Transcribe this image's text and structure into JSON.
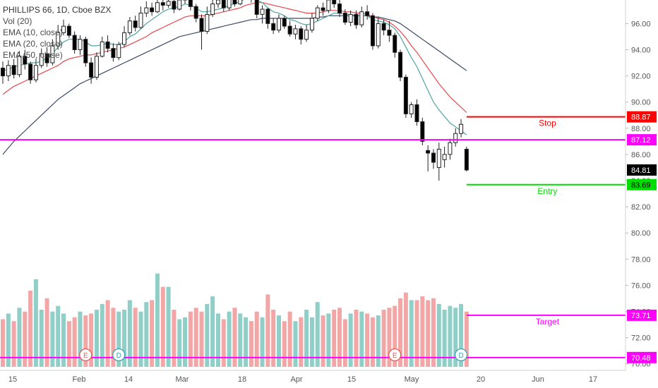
{
  "chart_data": {
    "type": "candlestick",
    "legend": {
      "title": "PHILLIPS 66, 1D, Cboe BZX",
      "lines": [
        "Vol (20)",
        "EMA (10, close)",
        "EMA (20, close)",
        "EMA (50, close)"
      ]
    },
    "y_axis": {
      "ticks": [
        "96.00",
        "94.00",
        "92.00",
        "90.00",
        "88.00",
        "86.00",
        "84.00",
        "82.00",
        "80.00",
        "78.00",
        "76.00",
        "74.00",
        "72.00",
        "70.00"
      ],
      "range": [
        69.5,
        97.8
      ]
    },
    "x_axis": {
      "ticks": [
        "15",
        "Feb",
        "14",
        "Mar",
        "18",
        "Apr",
        "15",
        "May",
        "20",
        "Jun",
        "17"
      ]
    },
    "levels": [
      {
        "name": "Stop",
        "value": 88.87,
        "label": "88.87",
        "color": "#ff0000",
        "text": "Stop"
      },
      {
        "name": "Line",
        "value": 87.12,
        "label": "87.12",
        "color": "#ff00ff",
        "text": ""
      },
      {
        "name": "Last",
        "value": 84.81,
        "label": "84.81",
        "color": "#000000",
        "text": ""
      },
      {
        "name": "Entry",
        "value": 83.69,
        "label": "83.69",
        "color": "#00dd00",
        "text": "Entry"
      },
      {
        "name": "Target",
        "value": 73.71,
        "label": "73.71",
        "color": "#ff00ff",
        "text": "Target"
      },
      {
        "name": "Low",
        "value": 70.48,
        "label": "70.48",
        "color": "#ff00ff",
        "text": ""
      }
    ],
    "events": [
      {
        "letter": "E",
        "date_index": 15
      },
      {
        "letter": "D",
        "date_index": 21
      },
      {
        "letter": "E",
        "date_index": 71
      },
      {
        "letter": "D",
        "date_index": 83
      }
    ],
    "candles": [
      [
        92.6,
        92.0,
        93.1,
        91.4
      ],
      [
        92.0,
        92.8,
        93.2,
        91.6
      ],
      [
        92.8,
        92.1,
        93.3,
        91.8
      ],
      [
        92.1,
        93.5,
        93.9,
        91.9
      ],
      [
        93.5,
        92.9,
        94.0,
        92.5
      ],
      [
        92.9,
        91.7,
        93.1,
        91.4
      ],
      [
        91.7,
        92.8,
        93.3,
        91.5
      ],
      [
        92.8,
        93.7,
        94.1,
        92.6
      ],
      [
        93.7,
        93.0,
        94.2,
        92.7
      ],
      [
        93.0,
        94.3,
        94.8,
        92.8
      ],
      [
        94.3,
        95.3,
        95.9,
        94.0
      ],
      [
        95.3,
        95.8,
        96.3,
        95.1
      ],
      [
        95.8,
        95.1,
        96.0,
        94.9
      ],
      [
        95.1,
        94.0,
        95.4,
        93.7
      ],
      [
        94.0,
        94.8,
        95.1,
        93.6
      ],
      [
        94.8,
        93.0,
        95.0,
        92.7
      ],
      [
        93.0,
        91.9,
        93.4,
        91.4
      ],
      [
        91.9,
        93.5,
        93.8,
        91.7
      ],
      [
        93.5,
        94.6,
        95.0,
        93.4
      ],
      [
        94.6,
        94.1,
        95.1,
        93.8
      ],
      [
        94.1,
        93.4,
        94.5,
        93.1
      ],
      [
        93.4,
        94.4,
        94.6,
        93.2
      ],
      [
        94.4,
        95.3,
        95.8,
        94.2
      ],
      [
        95.3,
        96.2,
        96.5,
        95.1
      ],
      [
        96.2,
        95.7,
        96.6,
        95.4
      ],
      [
        95.7,
        96.8,
        97.3,
        95.6
      ],
      [
        96.8,
        97.2,
        97.7,
        96.5
      ],
      [
        97.2,
        96.9,
        97.6,
        96.6
      ],
      [
        96.9,
        97.6,
        98.0,
        96.8
      ],
      [
        97.6,
        97.4,
        97.9,
        97.0
      ],
      [
        97.4,
        97.7,
        98.1,
        97.2
      ],
      [
        97.7,
        97.1,
        97.9,
        96.8
      ],
      [
        97.1,
        97.8,
        98.2,
        97.0
      ],
      [
        97.8,
        97.9,
        98.3,
        97.5
      ],
      [
        97.9,
        97.3,
        98.0,
        97.0
      ],
      [
        97.3,
        96.4,
        97.5,
        96.1
      ],
      [
        96.4,
        95.4,
        96.7,
        94.0
      ],
      [
        95.4,
        96.7,
        97.3,
        95.2
      ],
      [
        96.7,
        97.5,
        97.9,
        96.5
      ],
      [
        97.5,
        97.8,
        98.2,
        97.2
      ],
      [
        97.8,
        97.2,
        97.9,
        96.9
      ],
      [
        97.2,
        98.1,
        98.4,
        97.0
      ],
      [
        98.1,
        97.5,
        98.4,
        97.3
      ],
      [
        97.5,
        98.2,
        98.5,
        97.4
      ],
      [
        98.2,
        98.5,
        98.8,
        98.0
      ],
      [
        98.5,
        97.9,
        98.8,
        97.6
      ],
      [
        97.9,
        96.7,
        98.1,
        96.4
      ],
      [
        96.7,
        97.1,
        97.4,
        96.0
      ],
      [
        97.1,
        96.0,
        97.2,
        95.6
      ],
      [
        96.0,
        95.5,
        96.4,
        95.2
      ],
      [
        95.5,
        96.4,
        96.7,
        95.3
      ],
      [
        96.4,
        95.8,
        96.6,
        95.6
      ],
      [
        95.8,
        95.2,
        96.2,
        95.0
      ],
      [
        95.2,
        95.6,
        95.9,
        94.8
      ],
      [
        95.6,
        94.8,
        95.8,
        94.4
      ],
      [
        94.8,
        95.5,
        95.9,
        94.6
      ],
      [
        95.5,
        96.4,
        96.8,
        95.3
      ],
      [
        96.4,
        97.2,
        97.4,
        96.2
      ],
      [
        97.2,
        97.0,
        97.6,
        96.6
      ],
      [
        97.0,
        97.8,
        98.0,
        96.8
      ],
      [
        97.8,
        97.5,
        98.3,
        97.2
      ],
      [
        97.5,
        96.8,
        97.8,
        96.5
      ],
      [
        96.8,
        96.1,
        97.1,
        95.9
      ],
      [
        96.1,
        96.7,
        97.0,
        95.8
      ],
      [
        96.7,
        95.9,
        97.0,
        95.6
      ],
      [
        95.9,
        96.9,
        97.3,
        95.7
      ],
      [
        96.9,
        96.6,
        97.4,
        96.3
      ],
      [
        96.6,
        94.3,
        96.8,
        94.0
      ],
      [
        94.3,
        96.0,
        96.5,
        94.1
      ],
      [
        96.0,
        95.5,
        96.3,
        95.1
      ],
      [
        95.5,
        95.1,
        96.2,
        94.6
      ],
      [
        95.1,
        93.8,
        95.3,
        93.4
      ],
      [
        93.8,
        91.9,
        94.0,
        91.6
      ],
      [
        91.9,
        89.1,
        92.1,
        88.8
      ],
      [
        89.1,
        89.8,
        90.0,
        88.8
      ],
      [
        89.8,
        88.5,
        90.2,
        88.2
      ],
      [
        88.5,
        87.0,
        88.8,
        86.7
      ],
      [
        86.3,
        86.1,
        86.7,
        84.7
      ],
      [
        86.1,
        85.4,
        86.4,
        84.9
      ],
      [
        85.0,
        86.4,
        86.9,
        84.0
      ],
      [
        85.6,
        86.0,
        86.6,
        85.0
      ],
      [
        86.0,
        86.9,
        87.2,
        85.6
      ],
      [
        86.9,
        87.6,
        88.0,
        86.6
      ],
      [
        87.6,
        88.3,
        88.7,
        87.3
      ],
      [
        86.4,
        84.81,
        86.6,
        84.7
      ]
    ],
    "volume_up": [
      0,
      1,
      0,
      1,
      0,
      0,
      1,
      1,
      0,
      1,
      1,
      1,
      0,
      0,
      1,
      0,
      0,
      1,
      1,
      0,
      0,
      1,
      1,
      1,
      0,
      1,
      1,
      0,
      1,
      0,
      1,
      0,
      1,
      1,
      0,
      0,
      0,
      1,
      1,
      1,
      0,
      1,
      0,
      1,
      1,
      0,
      0,
      1,
      0,
      0,
      1,
      0,
      0,
      1,
      0,
      1,
      1,
      1,
      0,
      1,
      0,
      0,
      0,
      1,
      0,
      1,
      0,
      0,
      1,
      0,
      0,
      0,
      0,
      0,
      1,
      0,
      0,
      0,
      0,
      1,
      1,
      1,
      1,
      1,
      0
    ],
    "volume": [
      50,
      56,
      48,
      62,
      58,
      80,
      92,
      60,
      72,
      58,
      64,
      56,
      48,
      52,
      58,
      54,
      56,
      60,
      66,
      70,
      62,
      58,
      60,
      70,
      62,
      58,
      68,
      70,
      98,
      84,
      84,
      60,
      50,
      52,
      58,
      62,
      58,
      66,
      74,
      56,
      50,
      58,
      62,
      56,
      52,
      48,
      58,
      52,
      76,
      60,
      54,
      48,
      58,
      48,
      52,
      60,
      52,
      68,
      54,
      56,
      60,
      62,
      50,
      56,
      60,
      58,
      56,
      52,
      54,
      60,
      62,
      64,
      72,
      78,
      70,
      70,
      74,
      70,
      72,
      66,
      60,
      64,
      62,
      66,
      58
    ],
    "ema10": [
      92.4,
      92.5,
      92.7,
      92.8,
      92.9,
      93.0,
      93.0,
      93.1,
      93.4,
      93.7,
      94.2,
      94.6,
      94.8,
      94.8,
      94.8,
      94.6,
      94.3,
      94.3,
      94.4,
      94.5,
      94.4,
      94.4,
      94.6,
      95.0,
      95.2,
      95.6,
      96.0,
      96.3,
      96.6,
      96.9,
      97.1,
      97.2,
      97.3,
      97.5,
      97.4,
      97.2,
      96.9,
      96.9,
      97.0,
      97.1,
      97.2,
      97.4,
      97.5,
      97.7,
      97.9,
      98.0,
      97.8,
      97.6,
      97.2,
      96.9,
      96.8,
      96.6,
      96.3,
      96.2,
      96.0,
      95.9,
      96.0,
      96.2,
      96.4,
      96.6,
      96.8,
      96.8,
      96.7,
      96.7,
      96.6,
      96.6,
      96.6,
      96.3,
      96.2,
      96.1,
      95.9,
      95.6,
      95.0,
      94.2,
      93.4,
      92.7,
      91.8,
      90.9,
      90.0,
      89.4,
      88.9,
      88.4,
      88.1,
      87.8,
      87.5
    ],
    "ema20": [
      90.6,
      90.9,
      91.2,
      91.4,
      91.6,
      91.8,
      92.0,
      92.2,
      92.4,
      92.6,
      92.8,
      93.1,
      93.3,
      93.4,
      93.5,
      93.6,
      93.6,
      93.7,
      93.8,
      93.9,
      94.0,
      94.1,
      94.2,
      94.4,
      94.6,
      94.8,
      95.0,
      95.3,
      95.5,
      95.7,
      95.9,
      96.1,
      96.3,
      96.5,
      96.6,
      96.6,
      96.6,
      96.6,
      96.7,
      96.8,
      96.9,
      97.0,
      97.1,
      97.2,
      97.4,
      97.5,
      97.6,
      97.6,
      97.5,
      97.4,
      97.3,
      97.2,
      97.1,
      97.0,
      96.9,
      96.8,
      96.8,
      96.8,
      96.9,
      97.0,
      97.0,
      97.0,
      96.9,
      96.9,
      96.8,
      96.8,
      96.7,
      96.5,
      96.4,
      96.3,
      96.1,
      95.8,
      95.4,
      94.9,
      94.3,
      93.8,
      93.2,
      92.6,
      92.0,
      91.4,
      90.9,
      90.4,
      90.0,
      89.6,
      89.2
    ],
    "ema50": [
      86.0,
      86.5,
      87.0,
      87.4,
      87.8,
      88.2,
      88.6,
      89.0,
      89.4,
      89.8,
      90.2,
      90.5,
      90.8,
      91.1,
      91.4,
      91.6,
      91.8,
      92.0,
      92.2,
      92.4,
      92.6,
      92.8,
      93.0,
      93.2,
      93.4,
      93.6,
      93.8,
      94.0,
      94.2,
      94.4,
      94.6,
      94.8,
      95.0,
      95.1,
      95.2,
      95.3,
      95.4,
      95.5,
      95.6,
      95.7,
      95.8,
      95.9,
      96.0,
      96.1,
      96.2,
      96.3,
      96.3,
      96.4,
      96.4,
      96.4,
      96.4,
      96.4,
      96.4,
      96.4,
      96.4,
      96.4,
      96.4,
      96.5,
      96.5,
      96.6,
      96.6,
      96.6,
      96.6,
      96.6,
      96.6,
      96.6,
      96.6,
      96.5,
      96.5,
      96.4,
      96.3,
      96.2,
      96.0,
      95.7,
      95.4,
      95.1,
      94.8,
      94.5,
      94.2,
      93.9,
      93.6,
      93.3,
      93.0,
      92.7,
      92.4
    ]
  },
  "colors": {
    "up": "#26a69a",
    "down": "#000000",
    "vol_up": "#8fcfc8",
    "vol_down": "#f3a6a6",
    "ema10": "#4fa3a0",
    "ema20": "#e5484d",
    "ema50": "#3a4a66"
  }
}
